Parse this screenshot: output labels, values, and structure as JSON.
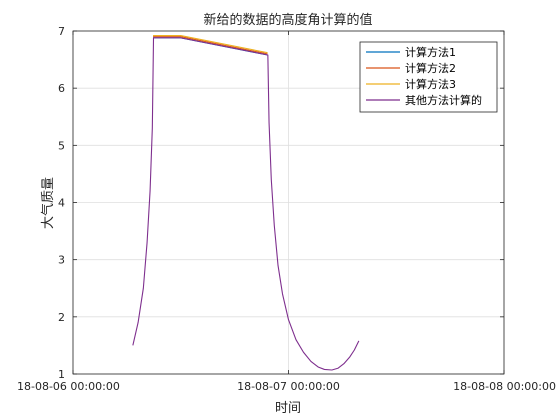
{
  "chart_data": {
    "type": "line",
    "title": "新给的数据的高度角计算的值",
    "xlabel": "时间",
    "ylabel": "大气质量",
    "xlim": [
      "18-08-06 00:00:00",
      "18-08-08 00:00:00"
    ],
    "ylim": [
      1,
      7
    ],
    "x_ticks": [
      "18-08-06 00:00:00",
      "18-08-07 00:00:00",
      "18-08-08 00:00:00"
    ],
    "y_ticks": [
      1,
      2,
      3,
      4,
      5,
      6,
      7
    ],
    "grid": true,
    "legend_position": "top-right",
    "series": [
      {
        "name": "计算方法1",
        "color": "#0072BD",
        "x": [
          "18-08-06 08:55",
          "18-08-06 12:00",
          "18-08-06 21:40"
        ],
        "y": [
          6.88,
          6.88,
          6.58
        ]
      },
      {
        "name": "计算方法2",
        "color": "#D95319",
        "x": [
          "18-08-06 08:55",
          "18-08-06 12:00",
          "18-08-06 21:40"
        ],
        "y": [
          6.9,
          6.9,
          6.6
        ]
      },
      {
        "name": "计算方法3",
        "color": "#EDB120",
        "x": [
          "18-08-06 08:55",
          "18-08-06 12:00",
          "18-08-06 21:40"
        ],
        "y": [
          6.92,
          6.92,
          6.62
        ]
      },
      {
        "name": "其他方法计算的",
        "color": "#7E2F8E",
        "x": [
          "18-08-06 06:40",
          "18-08-06 07:15",
          "18-08-06 07:50",
          "18-08-06 08:15",
          "18-08-06 08:35",
          "18-08-06 08:50",
          "18-08-06 08:58",
          "18-08-06 12:00",
          "18-08-06 21:42",
          "18-08-06 21:50",
          "18-08-06 22:05",
          "18-08-06 22:25",
          "18-08-06 22:50",
          "18-08-06 23:20",
          "18-08-07 00:00",
          "18-08-07 00:50",
          "18-08-07 01:40",
          "18-08-07 02:30",
          "18-08-07 03:20",
          "18-08-07 04:00",
          "18-08-07 04:50",
          "18-08-07 05:30",
          "18-08-07 06:10",
          "18-08-07 06:50",
          "18-08-07 07:20",
          "18-08-07 07:50"
        ],
        "y": [
          1.5,
          1.9,
          2.5,
          3.3,
          4.2,
          5.3,
          6.88,
          6.88,
          6.58,
          5.4,
          4.4,
          3.6,
          2.9,
          2.4,
          1.95,
          1.6,
          1.38,
          1.22,
          1.12,
          1.08,
          1.07,
          1.1,
          1.18,
          1.3,
          1.42,
          1.58
        ]
      }
    ]
  }
}
